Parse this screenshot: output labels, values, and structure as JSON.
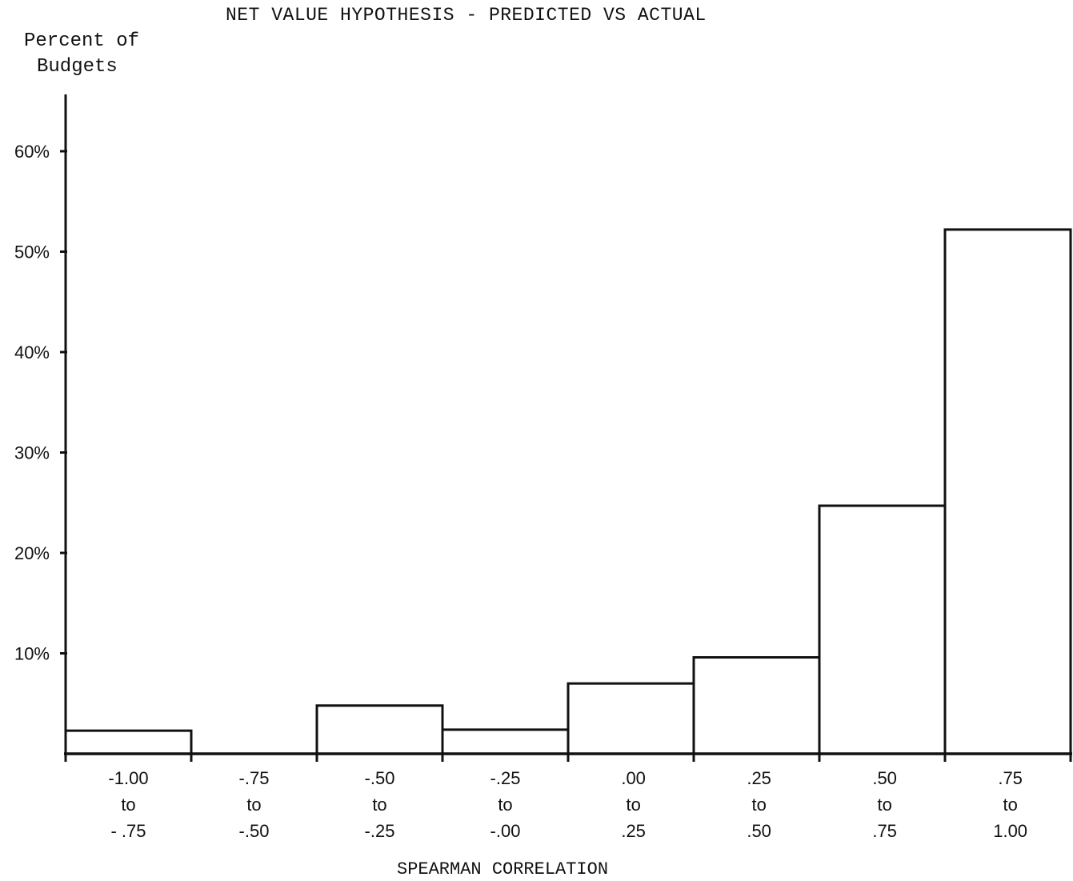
{
  "chart_data": {
    "type": "bar",
    "title": "NET VALUE HYPOTHESIS - PREDICTED VS ACTUAL",
    "ylabel_lines": [
      "Percent of",
      "Budgets"
    ],
    "xlabel": "SPEARMAN CORRELATION",
    "ylim": [
      0,
      65
    ],
    "yticks": [
      {
        "value": 10,
        "label": "10%"
      },
      {
        "value": 20,
        "label": "20%"
      },
      {
        "value": 30,
        "label": "30%"
      },
      {
        "value": 40,
        "label": "40%"
      },
      {
        "value": 50,
        "label": "50%"
      },
      {
        "value": 60,
        "label": "60%"
      }
    ],
    "categories": [
      [
        "-1.00",
        "to",
        "- .75"
      ],
      [
        "-.75",
        "to",
        "-.50"
      ],
      [
        "-.50",
        "to",
        "-.25"
      ],
      [
        "-.25",
        "to",
        "-.00"
      ],
      [
        ".00",
        "to",
        ".25"
      ],
      [
        ".25",
        "to",
        ".50"
      ],
      [
        ".50",
        "to",
        ".75"
      ],
      [
        ".75",
        "to",
        "1.00"
      ]
    ],
    "values": [
      2.3,
      0,
      4.8,
      2.4,
      7.0,
      9.6,
      24.7,
      52.2
    ],
    "grid": false,
    "colors": {
      "bar_fill": "#ffffff",
      "stroke": "#111111"
    }
  }
}
